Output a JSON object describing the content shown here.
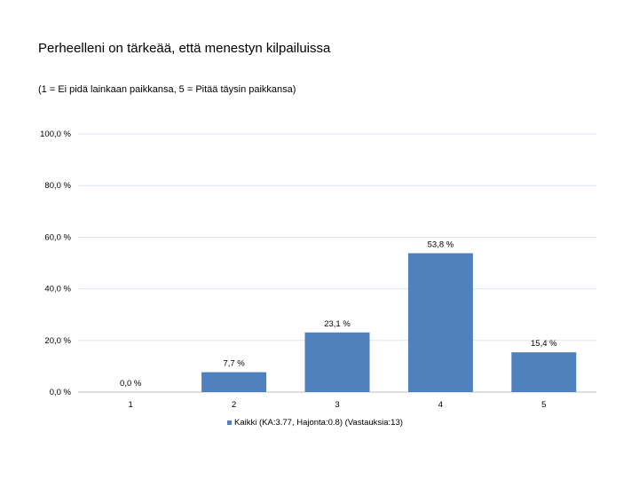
{
  "chart_data": {
    "type": "bar",
    "title": "Perheelleni on tärkeää, että menestyn kilpailuissa",
    "subtitle": "(1 = Ei pidä lainkaan paikkansa, 5 = Pitää täysin paikkansa)",
    "categories": [
      "1",
      "2",
      "3",
      "4",
      "5"
    ],
    "series": [
      {
        "name": "Kaikki (KA:3.77, Hajonta:0.8) (Vastauksia:13)",
        "values": [
          0.0,
          7.7,
          23.1,
          53.8,
          15.4
        ],
        "labels": [
          "0,0 %",
          "7,7 %",
          "23,1 %",
          "53,8 %",
          "15,4 %"
        ]
      }
    ],
    "ylim": [
      0,
      100
    ],
    "yticks": [
      0,
      20,
      40,
      60,
      80,
      100
    ],
    "ytick_labels": [
      "0,0 %",
      "20,0 %",
      "40,0 %",
      "60,0 %",
      "80,0 %",
      "100,0 %"
    ],
    "xlabel": "",
    "ylabel": "",
    "grid": true,
    "legend_position": "bottom",
    "colors": {
      "bar": "#4f81bd",
      "grid": "#dce6f1",
      "axis": "#bfbfbf"
    }
  }
}
